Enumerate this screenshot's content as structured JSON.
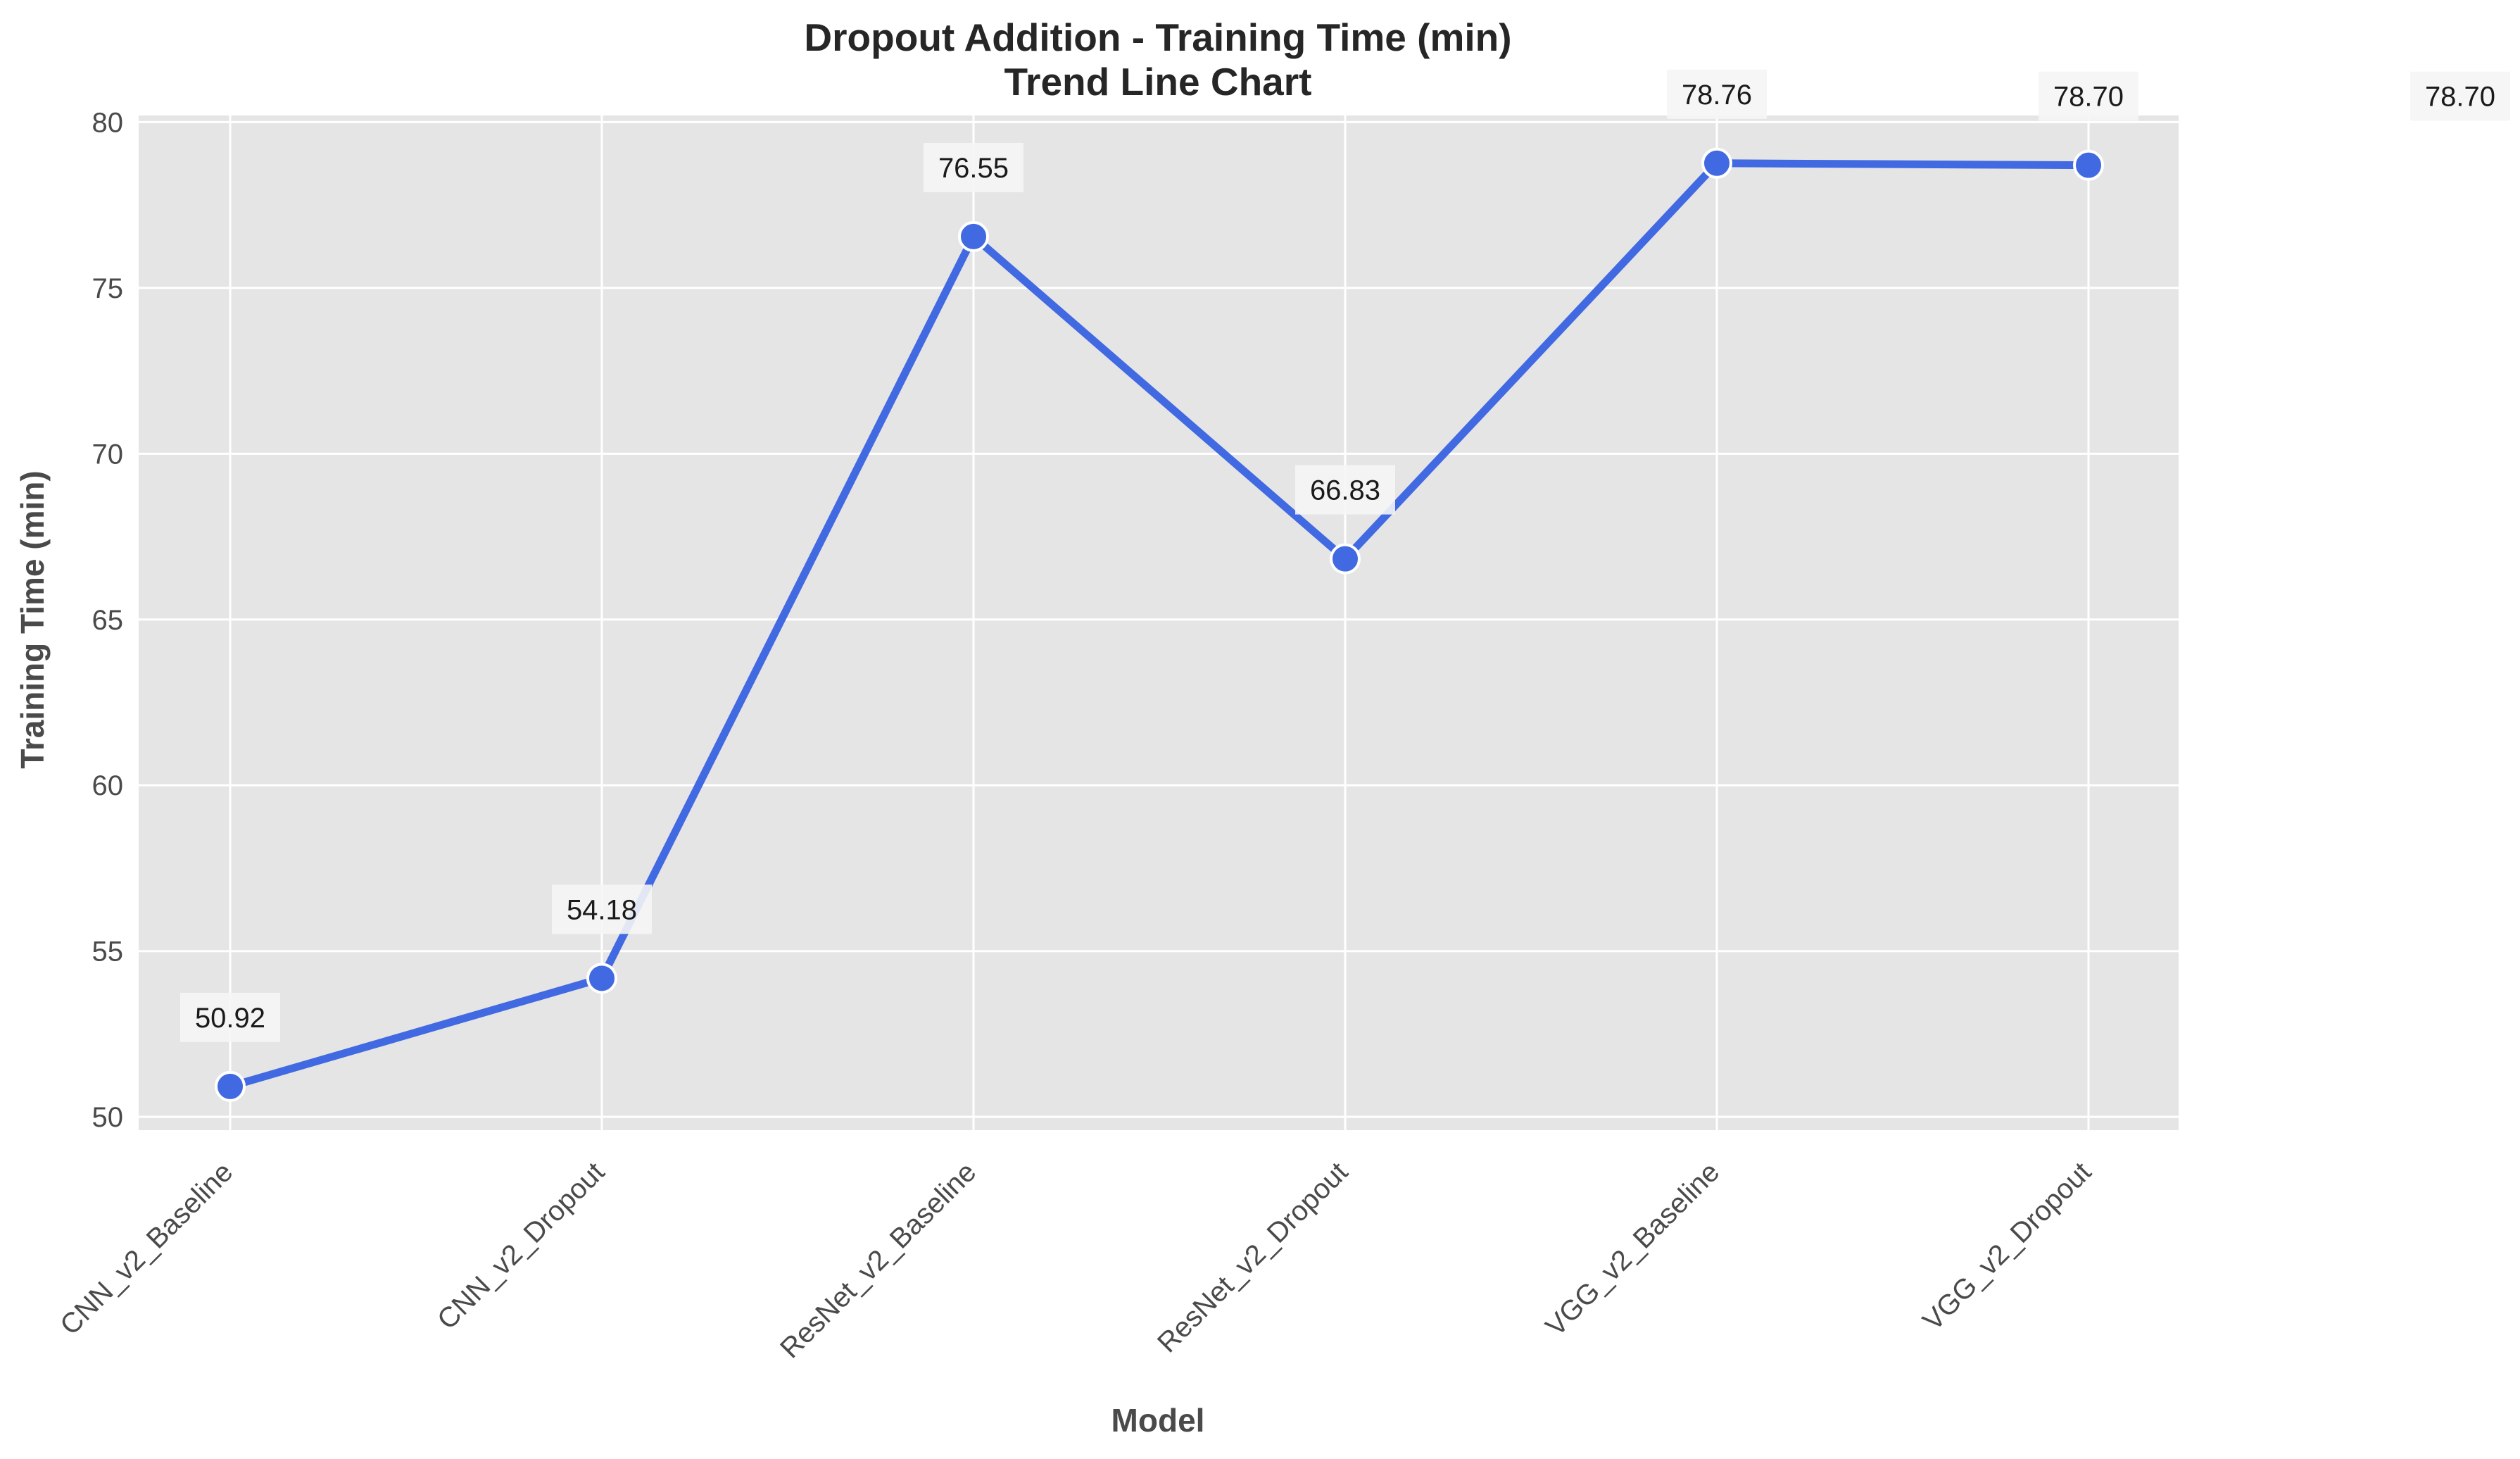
{
  "chart_data": {
    "type": "line",
    "title": "Dropout Addition - Training Time (min)",
    "subtitle": "Trend Line Chart",
    "xlabel": "Model",
    "ylabel": "Training Time (min)",
    "categories": [
      "CNN_v2_Baseline",
      "CNN_v2_Dropout",
      "ResNet_v2_Baseline",
      "ResNet_v2_Dropout",
      "VGG_v2_Baseline",
      "VGG_v2_Dropout"
    ],
    "series": [
      {
        "values": [
          50.92,
          54.18,
          76.55,
          66.83,
          78.76,
          78.7
        ]
      }
    ],
    "data_labels": [
      "50.92",
      "54.18",
      "76.55",
      "66.83",
      "78.76",
      "78.70"
    ],
    "extra_label": "78.70",
    "ylim": [
      49.6,
      80.2
    ],
    "yticks": [
      50,
      55,
      60,
      65,
      70,
      75,
      80
    ],
    "grid": true,
    "colors": {
      "line": "#4169e1",
      "marker_edge": "#ffffff",
      "plot_background": "#e5e5e5",
      "grid": "#ffffff",
      "label_box": "#f5f5f5"
    }
  }
}
